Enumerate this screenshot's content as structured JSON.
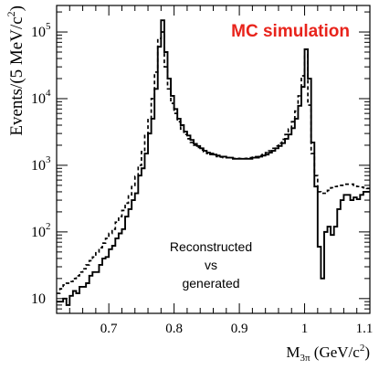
{
  "chart_data": {
    "type": "line",
    "step": true,
    "log_y": true,
    "xlim": [
      0.62,
      1.1
    ],
    "ylim": [
      6,
      250000
    ],
    "x_ticks": [
      "0.7",
      "0.8",
      "0.9",
      "1",
      "1.1"
    ],
    "x_tick_values": [
      0.7,
      0.8,
      0.9,
      1.0,
      1.1
    ],
    "y_tick_values": [
      10,
      100,
      1000,
      10000,
      100000
    ],
    "y_tick_mantissa": "10",
    "y_tick_exponents": [
      "",
      "2",
      "3",
      "4",
      "5"
    ],
    "xlabel": {
      "main": "M",
      "sub": "3π",
      "rest": " (GeV/c",
      "sup": "2",
      "end": ")"
    },
    "ylabel": {
      "main": "Events/(5 MeV/c",
      "sup": "2",
      "end": ")"
    },
    "annotation_title": "MC simulation",
    "annotation_title_color": "#e8231b",
    "annotation_lines": [
      "Reconstructed",
      "vs",
      "generated"
    ],
    "grid": false,
    "series": [
      {
        "style": "solid",
        "color": "#000000",
        "x": [
          0.62,
          0.625,
          0.63,
          0.635,
          0.64,
          0.645,
          0.65,
          0.655,
          0.66,
          0.665,
          0.67,
          0.675,
          0.68,
          0.685,
          0.69,
          0.695,
          0.7,
          0.705,
          0.71,
          0.715,
          0.72,
          0.725,
          0.73,
          0.735,
          0.74,
          0.745,
          0.75,
          0.755,
          0.76,
          0.765,
          0.77,
          0.775,
          0.78,
          0.785,
          0.79,
          0.795,
          0.8,
          0.805,
          0.81,
          0.815,
          0.82,
          0.825,
          0.83,
          0.835,
          0.84,
          0.845,
          0.85,
          0.855,
          0.86,
          0.865,
          0.87,
          0.875,
          0.88,
          0.885,
          0.89,
          0.895,
          0.9,
          0.905,
          0.91,
          0.915,
          0.92,
          0.925,
          0.93,
          0.935,
          0.94,
          0.945,
          0.95,
          0.955,
          0.96,
          0.965,
          0.97,
          0.975,
          0.98,
          0.985,
          0.99,
          0.995,
          1.0,
          1.005,
          1.01,
          1.015,
          1.02,
          1.025,
          1.03,
          1.035,
          1.04,
          1.045,
          1.05,
          1.055,
          1.06,
          1.065,
          1.07,
          1.075,
          1.08,
          1.085,
          1.09,
          1.095,
          1.1
        ],
        "y": [
          9,
          9,
          10,
          8,
          11,
          13,
          12,
          15,
          15,
          17,
          22,
          25,
          25,
          32,
          40,
          42,
          55,
          62,
          80,
          95,
          110,
          170,
          220,
          300,
          380,
          700,
          900,
          1500,
          3000,
          5000,
          14000,
          60000,
          150000,
          50000,
          20000,
          11000,
          7000,
          5000,
          4000,
          3200,
          2800,
          2400,
          2100,
          1950,
          1800,
          1650,
          1550,
          1500,
          1450,
          1400,
          1350,
          1350,
          1300,
          1300,
          1250,
          1250,
          1250,
          1250,
          1250,
          1250,
          1300,
          1300,
          1350,
          1400,
          1450,
          1550,
          1650,
          1800,
          1950,
          2150,
          2500,
          2900,
          3600,
          5000,
          7800,
          15000,
          55000,
          20000,
          2200,
          480,
          60,
          20,
          100,
          120,
          90,
          120,
          220,
          300,
          360,
          360,
          300,
          330,
          310,
          360,
          400,
          400,
          400
        ]
      },
      {
        "style": "dashed",
        "color": "#000000",
        "x": [
          0.62,
          0.625,
          0.63,
          0.635,
          0.64,
          0.645,
          0.65,
          0.655,
          0.66,
          0.665,
          0.67,
          0.675,
          0.68,
          0.685,
          0.69,
          0.695,
          0.7,
          0.705,
          0.71,
          0.715,
          0.72,
          0.725,
          0.73,
          0.735,
          0.74,
          0.745,
          0.75,
          0.755,
          0.76,
          0.765,
          0.77,
          0.775,
          0.78,
          0.785,
          0.79,
          0.795,
          0.8,
          0.805,
          0.81,
          0.815,
          0.82,
          0.825,
          0.83,
          0.835,
          0.84,
          0.845,
          0.85,
          0.855,
          0.86,
          0.865,
          0.87,
          0.875,
          0.88,
          0.885,
          0.89,
          0.895,
          0.9,
          0.905,
          0.91,
          0.915,
          0.92,
          0.925,
          0.93,
          0.935,
          0.94,
          0.945,
          0.95,
          0.955,
          0.96,
          0.965,
          0.97,
          0.975,
          0.98,
          0.985,
          0.99,
          0.995,
          1.0,
          1.005,
          1.01,
          1.015,
          1.02,
          1.025,
          1.03,
          1.035,
          1.04,
          1.045,
          1.05,
          1.055,
          1.06,
          1.065,
          1.07,
          1.075,
          1.08,
          1.085,
          1.09,
          1.095,
          1.1
        ],
        "y": [
          12,
          14,
          16,
          17,
          18,
          20,
          22,
          25,
          28,
          32,
          37,
          42,
          50,
          58,
          68,
          80,
          95,
          110,
          140,
          170,
          210,
          270,
          360,
          480,
          680,
          1000,
          1600,
          2800,
          5000,
          10000,
          25000,
          80000,
          100000,
          30000,
          14000,
          8500,
          6000,
          4500,
          3500,
          2900,
          2500,
          2200,
          2000,
          1850,
          1700,
          1600,
          1500,
          1450,
          1400,
          1350,
          1330,
          1300,
          1300,
          1280,
          1270,
          1270,
          1260,
          1260,
          1270,
          1300,
          1320,
          1350,
          1400,
          1450,
          1550,
          1650,
          1800,
          1950,
          2150,
          2450,
          2900,
          3500,
          4500,
          6500,
          11000,
          22000,
          45000,
          8000,
          1500,
          700,
          400,
          380,
          380,
          420,
          460,
          480,
          500,
          500,
          520,
          520,
          520,
          500,
          480,
          470,
          460,
          450,
          450
        ]
      }
    ]
  }
}
